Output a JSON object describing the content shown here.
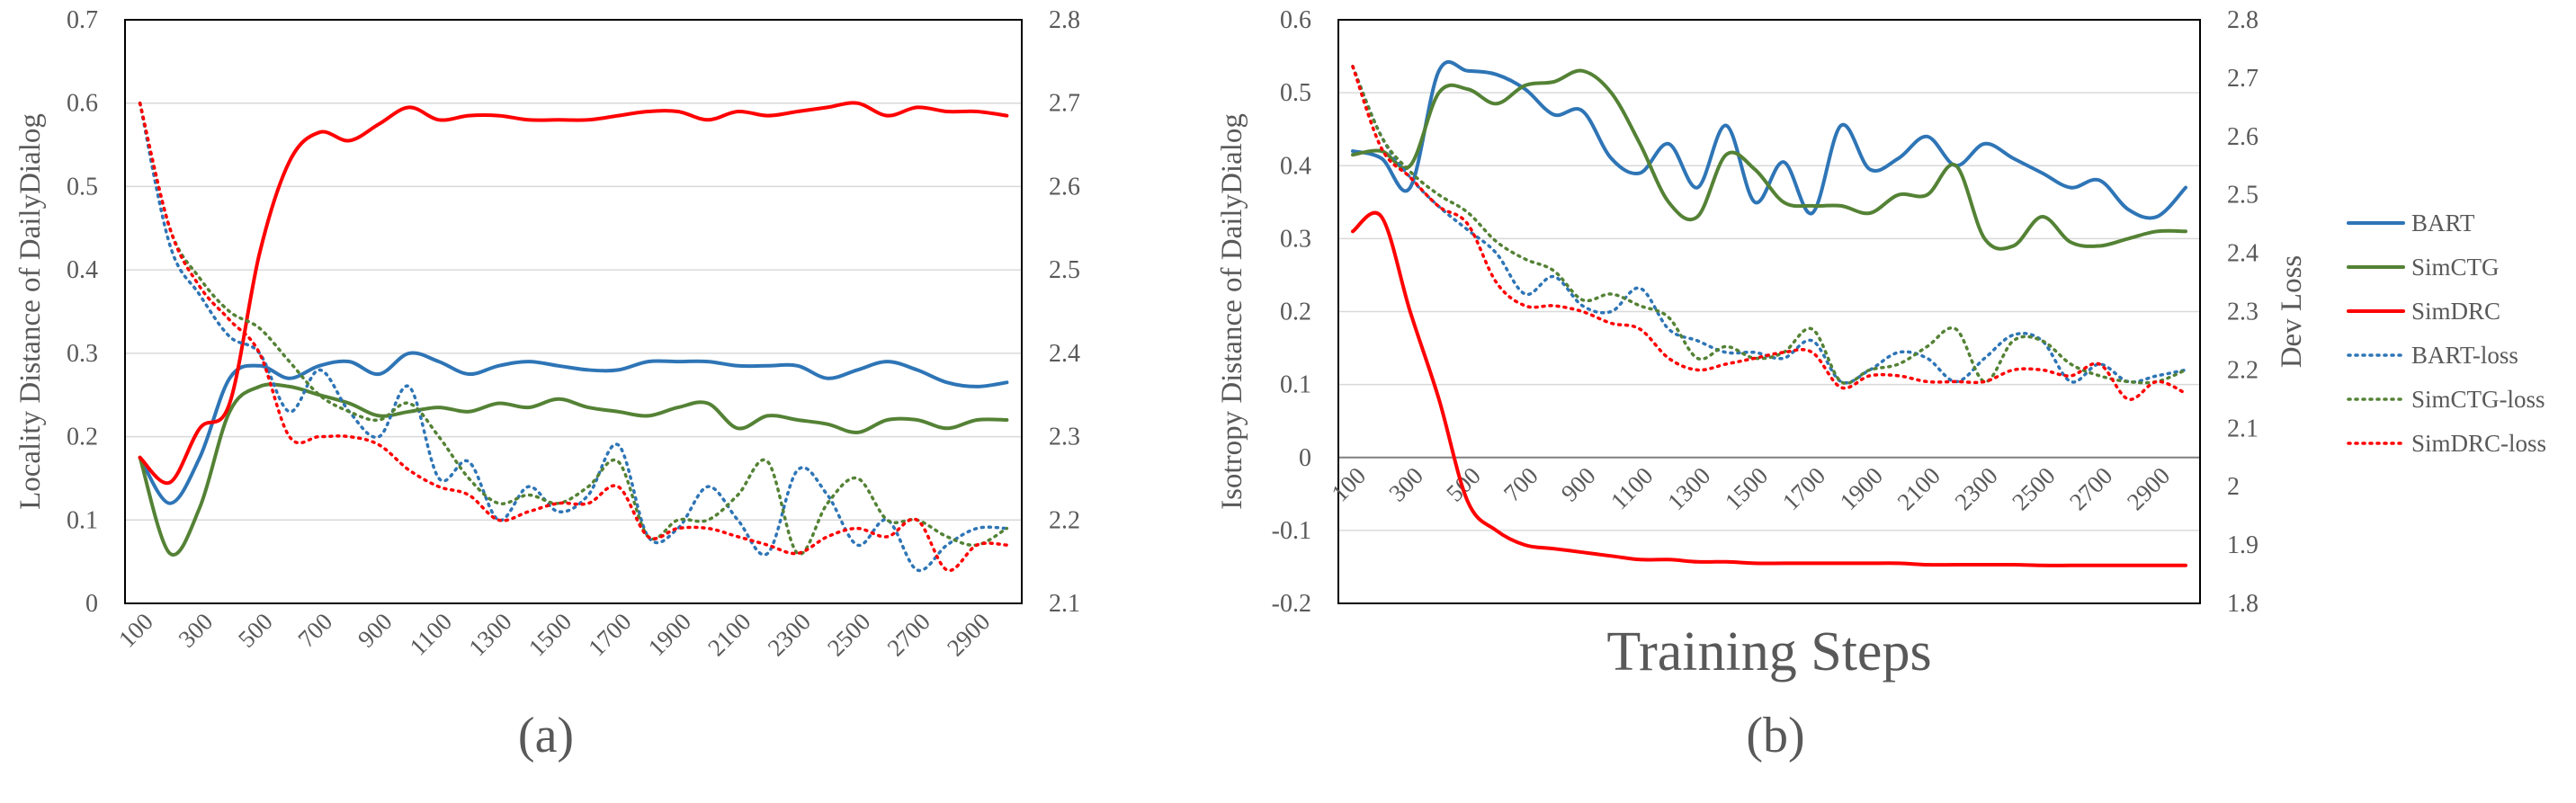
{
  "figure": {
    "shared_xlabel": "Training Steps",
    "shared_y2label": "Dev Loss",
    "x_ticks": [
      "100",
      "300",
      "500",
      "700",
      "900",
      "1100",
      "1300",
      "1500",
      "1700",
      "1900",
      "2100",
      "2300",
      "2500",
      "2700",
      "2900"
    ],
    "legend": [
      {
        "name": "BART",
        "color": "#2e75b6",
        "dash": "solid"
      },
      {
        "name": "SimCTG",
        "color": "#548235",
        "dash": "solid"
      },
      {
        "name": "SimDRC",
        "color": "#ff0000",
        "dash": "solid"
      },
      {
        "name": "BART-loss",
        "color": "#2e75b6",
        "dash": "dotted"
      },
      {
        "name": "SimCTG-loss",
        "color": "#548235",
        "dash": "dotted"
      },
      {
        "name": "SimDRC-loss",
        "color": "#ff0000",
        "dash": "dotted"
      }
    ]
  },
  "chart_data": [
    {
      "type": "line",
      "panel_label": "(a)",
      "ylabel": "Locality Distance of DailyDialog",
      "ylim": [
        0,
        0.7
      ],
      "y_ticks": [
        "0",
        "0.1",
        "0.2",
        "0.3",
        "0.4",
        "0.5",
        "0.6",
        "0.7"
      ],
      "y2lim": [
        2.1,
        2.8
      ],
      "y2_ticks": [
        "2.1",
        "2.2",
        "2.3",
        "2.4",
        "2.5",
        "2.6",
        "2.7",
        "2.8"
      ],
      "x": [
        100,
        200,
        300,
        400,
        500,
        600,
        700,
        800,
        900,
        1000,
        1100,
        1200,
        1300,
        1400,
        1500,
        1600,
        1700,
        1800,
        1900,
        2000,
        2100,
        2200,
        2300,
        2400,
        2500,
        2600,
        2700,
        2800,
        2900,
        3000
      ],
      "series": [
        {
          "name": "BART",
          "axis": "left",
          "values": [
            0.175,
            0.12,
            0.175,
            0.27,
            0.285,
            0.27,
            0.285,
            0.29,
            0.275,
            0.3,
            0.29,
            0.275,
            0.285,
            0.29,
            0.285,
            0.28,
            0.28,
            0.29,
            0.29,
            0.29,
            0.285,
            0.285,
            0.285,
            0.27,
            0.28,
            0.29,
            0.28,
            0.265,
            0.26,
            0.265
          ]
        },
        {
          "name": "SimCTG",
          "axis": "left",
          "values": [
            0.175,
            0.06,
            0.115,
            0.23,
            0.26,
            0.26,
            0.25,
            0.24,
            0.225,
            0.23,
            0.235,
            0.23,
            0.24,
            0.235,
            0.245,
            0.235,
            0.23,
            0.225,
            0.235,
            0.24,
            0.21,
            0.225,
            0.22,
            0.215,
            0.205,
            0.22,
            0.22,
            0.21,
            0.22,
            0.22
          ]
        },
        {
          "name": "SimDRC",
          "axis": "left",
          "values": [
            0.175,
            0.145,
            0.21,
            0.24,
            0.42,
            0.53,
            0.565,
            0.555,
            0.575,
            0.595,
            0.58,
            0.585,
            0.585,
            0.58,
            0.58,
            0.58,
            0.585,
            0.59,
            0.59,
            0.58,
            0.59,
            0.585,
            0.59,
            0.595,
            0.6,
            0.585,
            0.595,
            0.59,
            0.59,
            0.585
          ]
        },
        {
          "name": "BART-loss",
          "axis": "right",
          "values": [
            2.7,
            2.53,
            2.47,
            2.42,
            2.4,
            2.33,
            2.38,
            2.33,
            2.3,
            2.36,
            2.25,
            2.27,
            2.2,
            2.24,
            2.21,
            2.23,
            2.29,
            2.18,
            2.19,
            2.24,
            2.2,
            2.16,
            2.26,
            2.23,
            2.17,
            2.2,
            2.14,
            2.17,
            2.19,
            2.19
          ]
        },
        {
          "name": "SimCTG-loss",
          "axis": "right",
          "values": [
            2.7,
            2.55,
            2.49,
            2.45,
            2.43,
            2.39,
            2.35,
            2.33,
            2.32,
            2.34,
            2.3,
            2.25,
            2.22,
            2.23,
            2.22,
            2.24,
            2.27,
            2.18,
            2.2,
            2.2,
            2.23,
            2.27,
            2.16,
            2.22,
            2.25,
            2.2,
            2.2,
            2.18,
            2.17,
            2.19
          ]
        },
        {
          "name": "SimDRC-loss",
          "axis": "right",
          "values": [
            2.7,
            2.55,
            2.48,
            2.44,
            2.4,
            2.3,
            2.3,
            2.3,
            2.29,
            2.26,
            2.24,
            2.23,
            2.2,
            2.21,
            2.22,
            2.22,
            2.24,
            2.18,
            2.19,
            2.19,
            2.18,
            2.17,
            2.16,
            2.18,
            2.19,
            2.18,
            2.2,
            2.14,
            2.17,
            2.17
          ]
        }
      ]
    },
    {
      "type": "line",
      "panel_label": "(b)",
      "ylabel": "Isotropy Distance of DailyDialog",
      "ylim": [
        -0.2,
        0.6
      ],
      "y_ticks": [
        "-0.2",
        "-0.1",
        "0",
        "0.1",
        "0.2",
        "0.3",
        "0.4",
        "0.5",
        "0.6"
      ],
      "y2lim": [
        1.8,
        2.8
      ],
      "y2_ticks": [
        "1.8",
        "1.9",
        "2",
        "2.1",
        "2.2",
        "2.3",
        "2.4",
        "2.5",
        "2.6",
        "2.7",
        "2.8"
      ],
      "x": [
        100,
        200,
        300,
        400,
        500,
        600,
        700,
        800,
        900,
        1000,
        1100,
        1200,
        1300,
        1400,
        1500,
        1600,
        1700,
        1800,
        1900,
        2000,
        2100,
        2200,
        2300,
        2400,
        2500,
        2600,
        2700,
        2800,
        2900,
        3000
      ],
      "series": [
        {
          "name": "BART",
          "axis": "left",
          "values": [
            0.42,
            0.41,
            0.37,
            0.53,
            0.53,
            0.525,
            0.505,
            0.47,
            0.475,
            0.41,
            0.39,
            0.43,
            0.37,
            0.455,
            0.35,
            0.405,
            0.335,
            0.455,
            0.395,
            0.41,
            0.44,
            0.4,
            0.43,
            0.41,
            0.39,
            0.37,
            0.38,
            0.34,
            0.33,
            0.37
          ]
        },
        {
          "name": "SimCTG",
          "axis": "left",
          "values": [
            0.415,
            0.42,
            0.4,
            0.5,
            0.505,
            0.485,
            0.51,
            0.515,
            0.53,
            0.5,
            0.43,
            0.35,
            0.33,
            0.415,
            0.395,
            0.35,
            0.345,
            0.345,
            0.335,
            0.36,
            0.36,
            0.4,
            0.3,
            0.29,
            0.33,
            0.295,
            0.29,
            0.3,
            0.31,
            0.31
          ]
        },
        {
          "name": "SimDRC",
          "axis": "left",
          "values": [
            0.31,
            0.33,
            0.2,
            0.08,
            -0.06,
            -0.1,
            -0.12,
            -0.125,
            -0.13,
            -0.135,
            -0.14,
            -0.14,
            -0.143,
            -0.143,
            -0.145,
            -0.145,
            -0.145,
            -0.145,
            -0.145,
            -0.145,
            -0.147,
            -0.147,
            -0.147,
            -0.147,
            -0.148,
            -0.148,
            -0.148,
            -0.148,
            -0.148,
            -0.148
          ]
        },
        {
          "name": "BART-loss",
          "axis": "right",
          "values": [
            2.72,
            2.6,
            2.53,
            2.48,
            2.44,
            2.4,
            2.33,
            2.36,
            2.31,
            2.3,
            2.34,
            2.27,
            2.25,
            2.23,
            2.23,
            2.22,
            2.25,
            2.18,
            2.2,
            2.23,
            2.22,
            2.18,
            2.22,
            2.26,
            2.25,
            2.18,
            2.21,
            2.18,
            2.19,
            2.2
          ]
        },
        {
          "name": "SimCTG-loss",
          "axis": "right",
          "values": [
            2.72,
            2.6,
            2.54,
            2.5,
            2.47,
            2.42,
            2.39,
            2.37,
            2.32,
            2.33,
            2.31,
            2.29,
            2.22,
            2.24,
            2.22,
            2.23,
            2.27,
            2.18,
            2.2,
            2.21,
            2.24,
            2.27,
            2.18,
            2.25,
            2.25,
            2.21,
            2.19,
            2.18,
            2.18,
            2.2
          ]
        },
        {
          "name": "SimDRC-loss",
          "axis": "right",
          "values": [
            2.72,
            2.58,
            2.53,
            2.48,
            2.45,
            2.35,
            2.31,
            2.31,
            2.3,
            2.28,
            2.27,
            2.22,
            2.2,
            2.21,
            2.22,
            2.23,
            2.23,
            2.17,
            2.19,
            2.19,
            2.18,
            2.18,
            2.18,
            2.2,
            2.2,
            2.19,
            2.21,
            2.15,
            2.18,
            2.16
          ]
        }
      ]
    }
  ]
}
